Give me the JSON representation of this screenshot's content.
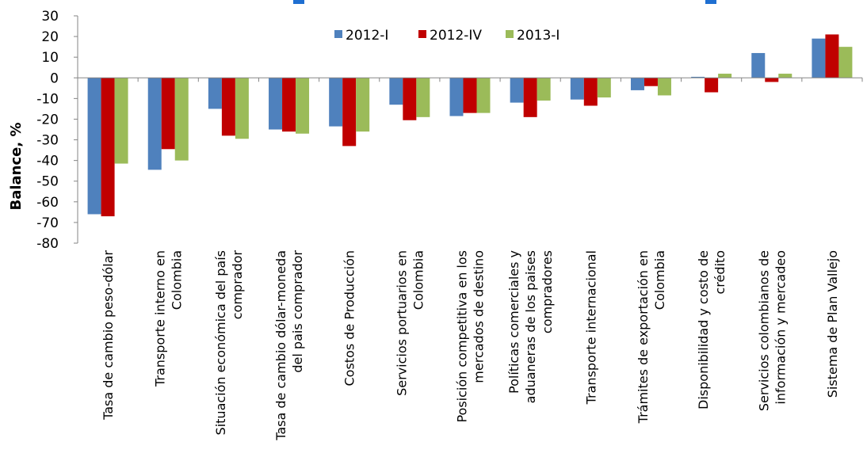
{
  "chart_data": {
    "type": "bar",
    "ylabel": "Balance, %",
    "ylim": [
      -80,
      30
    ],
    "yticks": [
      30,
      20,
      10,
      0,
      -10,
      -20,
      -30,
      -40,
      -50,
      -60,
      -70,
      -80
    ],
    "legend_position": "top-center",
    "grid": false,
    "categories": [
      "Tasa de cambio peso-dólar",
      "Transporte interno en Colombia",
      "Situación económica del país comprador",
      "Tasa de cambio dólar-moneda del país comprador",
      "Costos de Producción",
      "Servicios portuarios en Colombia",
      "Posición competitiva en los mercados de destino",
      "Políticas comerciales y aduaneras de los países compradores",
      "Transporte internacional",
      "Trámites de exportación en Colombia",
      "Disponibilidad y costo de crédito",
      "Servicios colombianos de información y mercadeo",
      "Sistema de Plan Vallejo"
    ],
    "category_lines": [
      [
        "Tasa de cambio peso-dólar"
      ],
      [
        "Transporte interno en",
        "Colombia"
      ],
      [
        "Situación económica del país",
        "comprador"
      ],
      [
        "Tasa de cambio dólar-moneda",
        "del pais comprador"
      ],
      [
        "Costos de Producción"
      ],
      [
        "Servicios portuarios en",
        "Colombia"
      ],
      [
        "Posición competitiva en los",
        "mercados de destino"
      ],
      [
        "Políticas comerciales y",
        "aduaneras de los paises",
        "compradores"
      ],
      [
        "Transporte internacional"
      ],
      [
        "Trámites de exportación en",
        "Colombia"
      ],
      [
        "Disponibilidad y costo de",
        "crédito"
      ],
      [
        "Servicios colombianos de",
        "información y mercadeo"
      ],
      [
        "Sistema de Plan Vallejo"
      ]
    ],
    "series": [
      {
        "name": "2012-I",
        "color": "#4f81bd",
        "values": [
          -66,
          -44.5,
          -15,
          -25,
          -23.5,
          -13,
          -18.5,
          -12,
          -10.5,
          -6,
          0.5,
          12,
          19
        ]
      },
      {
        "name": "2012-IV",
        "color": "#c00000",
        "values": [
          -67,
          -34.5,
          -28,
          -26,
          -33,
          -20.5,
          -17,
          -19,
          -13.5,
          -4,
          -7,
          -2,
          21
        ]
      },
      {
        "name": "2013-I",
        "color": "#9bbb59",
        "values": [
          -41.5,
          -40,
          -29.5,
          -27,
          -26,
          -19,
          -17,
          -11,
          -9.5,
          -8.5,
          2,
          2,
          15
        ]
      }
    ]
  }
}
